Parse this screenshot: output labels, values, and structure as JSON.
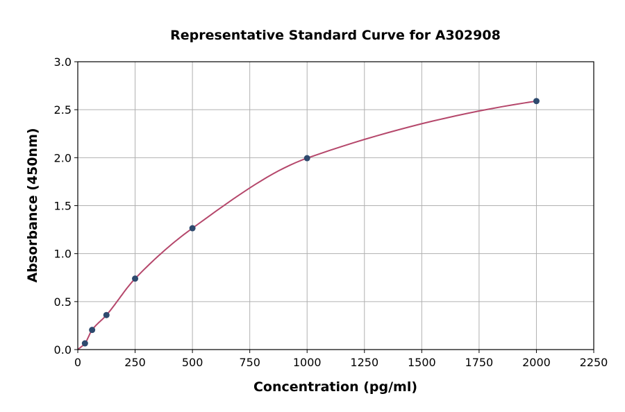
{
  "chart_data": {
    "type": "scatter",
    "title": "Representative Standard Curve for A302908",
    "xlabel": "Concentration (pg/ml)",
    "ylabel": "Absorbance (450nm)",
    "xlim": [
      0,
      2250
    ],
    "ylim": [
      0,
      3.0
    ],
    "xticks": [
      0,
      250,
      500,
      750,
      1000,
      1250,
      1500,
      1750,
      2000,
      2250
    ],
    "yticks": [
      "0.0",
      "0.5",
      "1.0",
      "1.5",
      "2.0",
      "2.5",
      "3.0"
    ],
    "grid": true,
    "points": [
      {
        "x": 31.25,
        "y": 0.065
      },
      {
        "x": 62.5,
        "y": 0.205
      },
      {
        "x": 125,
        "y": 0.36
      },
      {
        "x": 250,
        "y": 0.74
      },
      {
        "x": 500,
        "y": 1.265
      },
      {
        "x": 1000,
        "y": 1.995
      },
      {
        "x": 2000,
        "y": 2.59
      }
    ],
    "fit_curve": true,
    "colors": {
      "points": "#2e4a6e",
      "curve": "#b5476b",
      "grid": "#b0b0b0"
    }
  }
}
